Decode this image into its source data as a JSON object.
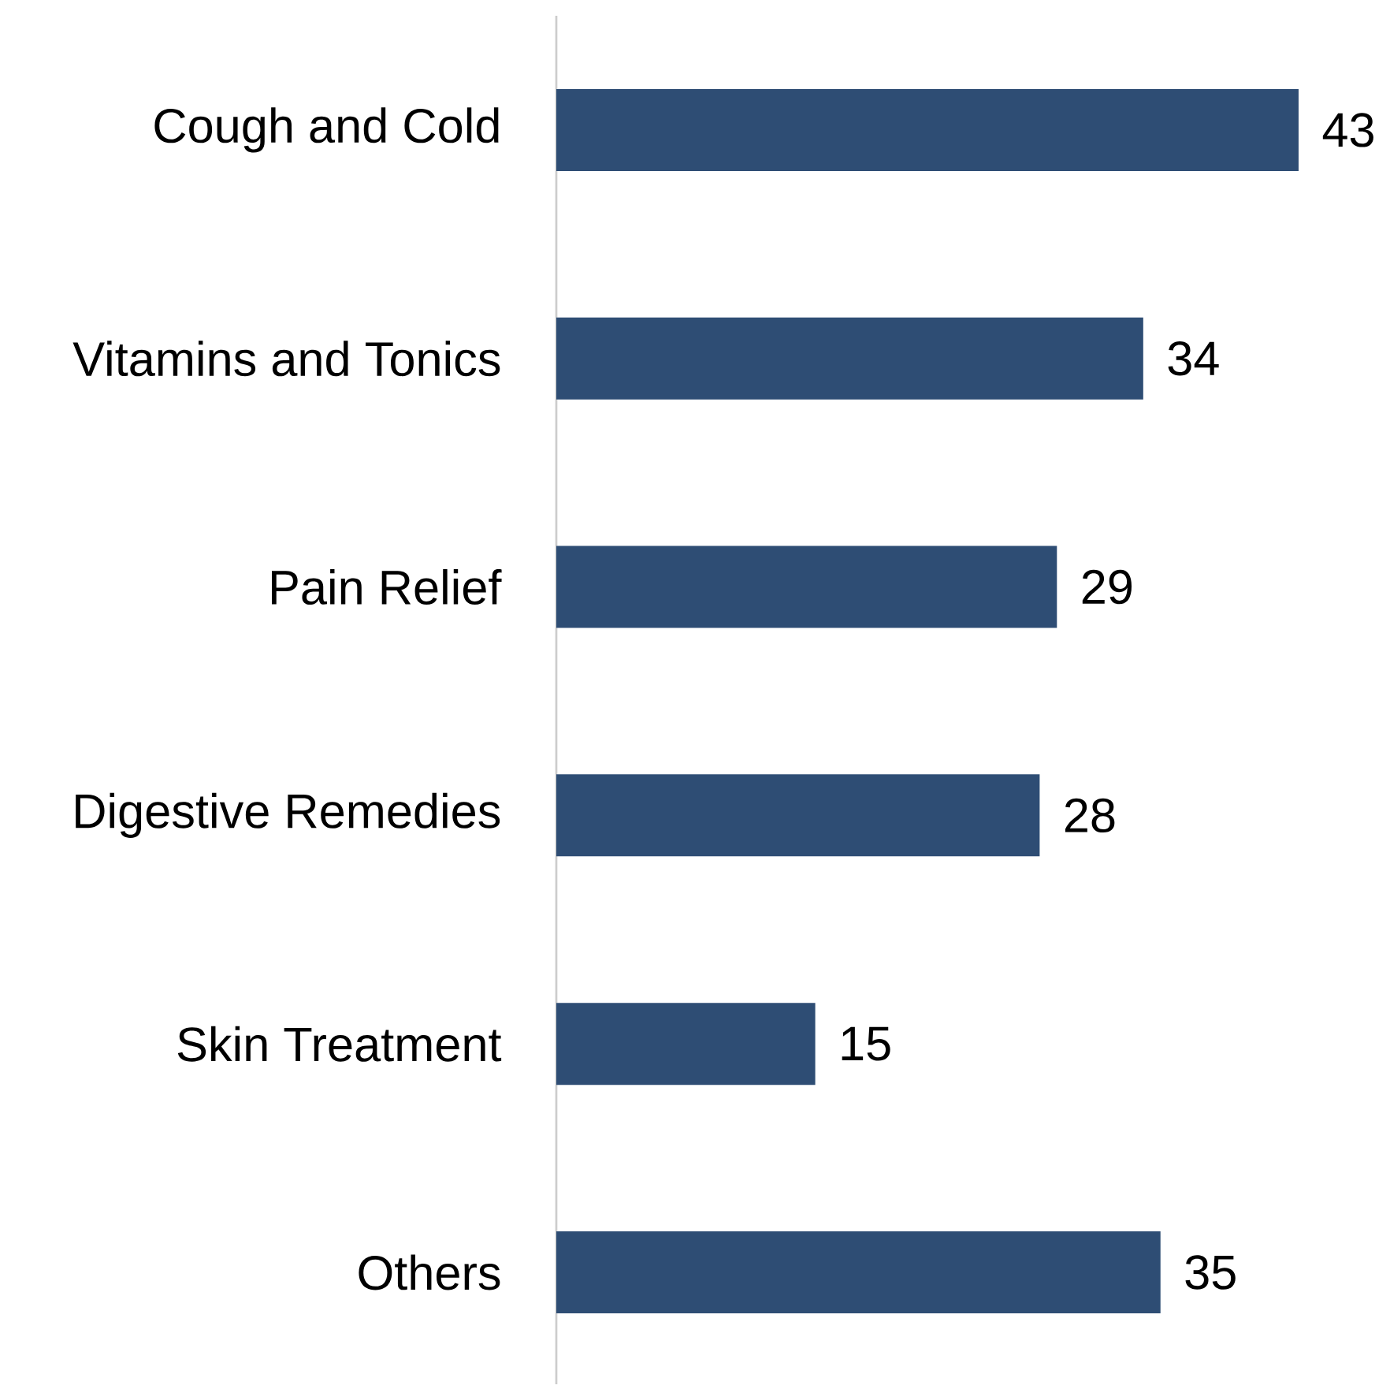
{
  "chart_data": {
    "type": "bar",
    "orientation": "horizontal",
    "categories": [
      "Cough and Cold",
      "Vitamins and Tonics",
      "Pain Relief",
      "Digestive Remedies",
      "Skin Treatment",
      "Others"
    ],
    "values": [
      43,
      34,
      29,
      28,
      15,
      35
    ],
    "color": "#2e4d74",
    "data_labels": true
  }
}
